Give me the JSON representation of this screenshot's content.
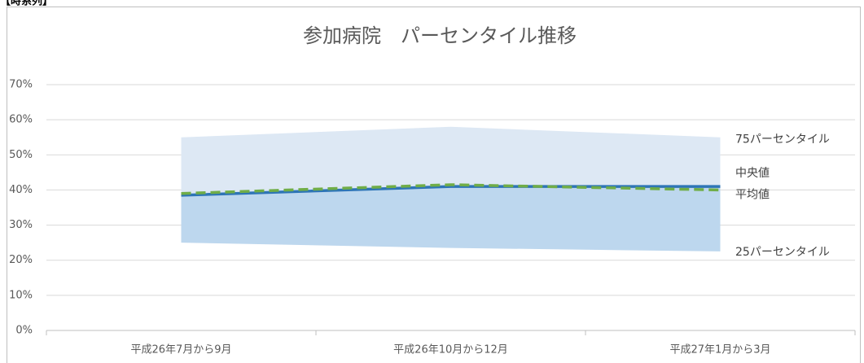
{
  "section_label": "【時系列】",
  "chart_data": {
    "type": "band-line",
    "title": "参加病院　パーセンタイル推移",
    "categories": [
      "平成26年7月から9月",
      "平成26年10月から12月",
      "平成27年1月から3月"
    ],
    "series": [
      {
        "name": "25パーセンタイル",
        "color": "#bdd7ee",
        "values": [
          25,
          23.5,
          22.5
        ]
      },
      {
        "name": "中央値",
        "color": "#2e75b6",
        "values": [
          38.5,
          41,
          41
        ]
      },
      {
        "name": "75パーセンタイル",
        "color": "#dde8f4",
        "values": [
          55,
          58,
          55
        ]
      },
      {
        "name": "平均値",
        "color": "#70ad47",
        "values": [
          39,
          41.5,
          40
        ]
      }
    ],
    "ylim": [
      0,
      70
    ],
    "yticks": [
      {
        "value": 0,
        "label": "0%"
      },
      {
        "value": 10,
        "label": "10%"
      },
      {
        "value": 20,
        "label": "20%"
      },
      {
        "value": 30,
        "label": "30%"
      },
      {
        "value": 40,
        "label": "40%"
      },
      {
        "value": 50,
        "label": "50%"
      },
      {
        "value": 60,
        "label": "60%"
      },
      {
        "value": 70,
        "label": "70%"
      }
    ],
    "grid": true
  }
}
